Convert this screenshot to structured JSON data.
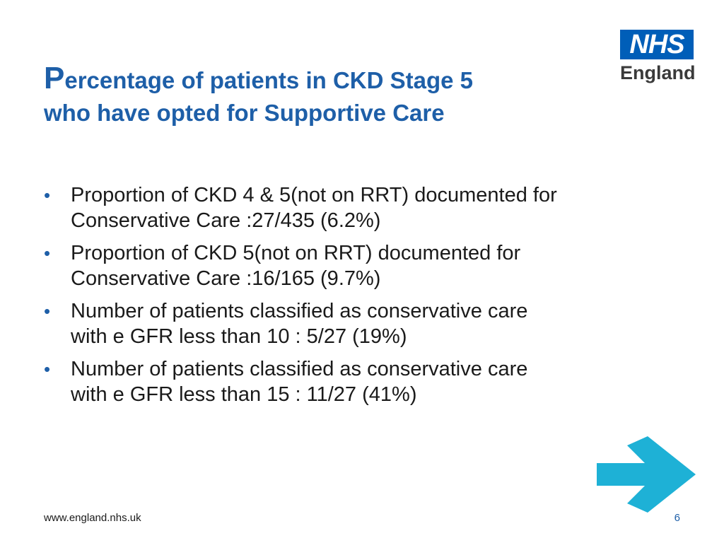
{
  "slide": {
    "title_first_letter": "P",
    "title_line1_rest": "ercentage of patients in CKD Stage 5",
    "title_line2": "who have opted for Supportive Care",
    "bullets": [
      {
        "line1": "Proportion of CKD 4 & 5(not on RRT) documented for",
        "line2": "Conservative Care :27/435 (6.2%)"
      },
      {
        "line1": "Proportion of CKD  5(not on RRT) documented for",
        "line2": "Conservative Care :16/165 (9.7%)"
      },
      {
        "line1": "Number of patients classified as conservative care",
        "line2": "with e GFR less than 10 : 5/27 (19%)"
      },
      {
        "line1": "Number of patients classified as conservative care",
        "line2": "with e GFR less than 15 : 11/27 (41%)"
      }
    ],
    "footer_url": "www.england.nhs.uk",
    "page_number": "6"
  },
  "logo": {
    "nhs": "NHS",
    "region": "England"
  },
  "colors": {
    "title": "#1e5fa8",
    "nhs_blue": "#005eb8",
    "arrow": "#1eb1d6",
    "body_text": "#1a1a1a"
  },
  "icons": {
    "arrow": "right-arrow-icon"
  }
}
